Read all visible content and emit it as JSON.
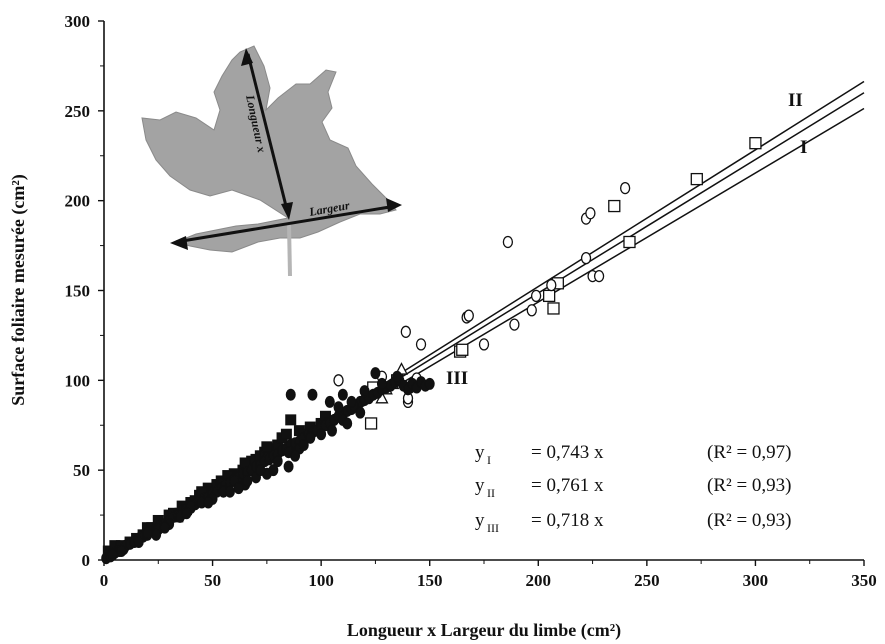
{
  "chart_data": {
    "type": "scatter",
    "xlabel": "Longueur x Largeur du limbe (cm²)",
    "ylabel": "Surface foliaire mesurée (cm²)",
    "xlim": [
      0,
      350
    ],
    "ylim": [
      0,
      300
    ],
    "x_ticks": [
      0,
      50,
      100,
      150,
      200,
      250,
      300,
      350
    ],
    "y_ticks": [
      0,
      50,
      100,
      150,
      200,
      250,
      300
    ],
    "grid": false,
    "regression_lines": [
      {
        "name": "I",
        "slope": 0.743
      },
      {
        "name": "II",
        "slope": 0.761
      },
      {
        "name": "III",
        "slope": 0.718
      }
    ],
    "equations": [
      {
        "y": "y",
        "sub": "I",
        "rhs": "= 0,743  x",
        "r2": "(R² = 0,97)"
      },
      {
        "y": "y",
        "sub": "II",
        "rhs": "= 0,761  x",
        "r2": "(R² = 0,93)"
      },
      {
        "y": "y",
        "sub": "III",
        "rhs": "= 0,718  x",
        "r2": "(R² = 0,93)"
      }
    ],
    "series": [
      {
        "marker": "open-square",
        "points": [
          [
            124,
            96
          ],
          [
            164,
            116
          ],
          [
            123,
            76
          ],
          [
            207,
            140
          ],
          [
            209,
            154
          ],
          [
            205,
            147
          ],
          [
            235,
            197
          ],
          [
            242,
            177
          ],
          [
            273,
            212
          ],
          [
            300,
            232
          ],
          [
            135,
            100
          ],
          [
            165,
            117
          ]
        ]
      },
      {
        "marker": "open-circle",
        "points": [
          [
            108,
            100
          ],
          [
            128,
            102
          ],
          [
            141,
            96
          ],
          [
            144,
            101
          ],
          [
            140,
            88
          ],
          [
            139,
            127
          ],
          [
            146,
            120
          ],
          [
            167,
            135
          ],
          [
            175,
            120
          ],
          [
            186,
            177
          ],
          [
            189,
            131
          ],
          [
            197,
            139
          ],
          [
            199,
            147
          ],
          [
            206,
            153
          ],
          [
            222,
            190
          ],
          [
            224,
            193
          ],
          [
            222,
            168
          ],
          [
            225,
            158
          ],
          [
            228,
            158
          ],
          [
            240,
            207
          ],
          [
            140,
            90
          ],
          [
            168,
            136
          ]
        ]
      },
      {
        "marker": "open-triangle",
        "points": [
          [
            130,
            95
          ],
          [
            137,
            106
          ],
          [
            133,
            98
          ],
          [
            128,
            90
          ]
        ]
      },
      {
        "marker": "filled-square",
        "points": [
          [
            2,
            5
          ],
          [
            5,
            8
          ],
          [
            8,
            8
          ],
          [
            12,
            10
          ],
          [
            15,
            12
          ],
          [
            18,
            14
          ],
          [
            20,
            18
          ],
          [
            22,
            18
          ],
          [
            25,
            22
          ],
          [
            28,
            20
          ],
          [
            30,
            25
          ],
          [
            32,
            26
          ],
          [
            34,
            24
          ],
          [
            36,
            30
          ],
          [
            38,
            28
          ],
          [
            40,
            32
          ],
          [
            42,
            33
          ],
          [
            44,
            36
          ],
          [
            46,
            34
          ],
          [
            48,
            40
          ],
          [
            50,
            38
          ],
          [
            52,
            42
          ],
          [
            54,
            44
          ],
          [
            55,
            43
          ],
          [
            58,
            46
          ],
          [
            60,
            48
          ],
          [
            62,
            47
          ],
          [
            64,
            50
          ],
          [
            66,
            52
          ],
          [
            68,
            55
          ],
          [
            70,
            56
          ],
          [
            72,
            58
          ],
          [
            74,
            60
          ],
          [
            76,
            58
          ],
          [
            78,
            62
          ],
          [
            80,
            64
          ],
          [
            82,
            68
          ],
          [
            84,
            70
          ],
          [
            86,
            78
          ],
          [
            88,
            62
          ],
          [
            90,
            72
          ],
          [
            92,
            70
          ],
          [
            95,
            74
          ],
          [
            98,
            72
          ],
          [
            100,
            76
          ],
          [
            102,
            80
          ],
          [
            104,
            76
          ],
          [
            35,
            26
          ],
          [
            45,
            38
          ],
          [
            65,
            54
          ],
          [
            75,
            63
          ],
          [
            57,
            47
          ]
        ]
      },
      {
        "marker": "filled-circle",
        "points": [
          [
            1,
            1
          ],
          [
            3,
            2
          ],
          [
            5,
            4
          ],
          [
            7,
            5
          ],
          [
            9,
            6
          ],
          [
            10,
            8
          ],
          [
            12,
            9
          ],
          [
            14,
            10
          ],
          [
            16,
            12
          ],
          [
            18,
            13
          ],
          [
            20,
            14
          ],
          [
            22,
            16
          ],
          [
            24,
            17
          ],
          [
            26,
            19
          ],
          [
            28,
            20
          ],
          [
            30,
            22
          ],
          [
            32,
            24
          ],
          [
            34,
            25
          ],
          [
            36,
            27
          ],
          [
            38,
            28
          ],
          [
            40,
            29
          ],
          [
            42,
            31
          ],
          [
            44,
            33
          ],
          [
            46,
            34
          ],
          [
            48,
            35
          ],
          [
            50,
            37
          ],
          [
            52,
            38
          ],
          [
            54,
            40
          ],
          [
            56,
            42
          ],
          [
            58,
            43
          ],
          [
            60,
            45
          ],
          [
            62,
            46
          ],
          [
            64,
            48
          ],
          [
            66,
            49
          ],
          [
            68,
            50
          ],
          [
            70,
            52
          ],
          [
            72,
            53
          ],
          [
            74,
            55
          ],
          [
            76,
            56
          ],
          [
            78,
            58
          ],
          [
            80,
            59
          ],
          [
            82,
            61
          ],
          [
            84,
            62
          ],
          [
            86,
            64
          ],
          [
            88,
            65
          ],
          [
            90,
            66
          ],
          [
            92,
            68
          ],
          [
            94,
            70
          ],
          [
            96,
            71
          ],
          [
            98,
            72
          ],
          [
            100,
            74
          ],
          [
            102,
            75
          ],
          [
            104,
            76
          ],
          [
            106,
            78
          ],
          [
            108,
            80
          ],
          [
            110,
            81
          ],
          [
            112,
            83
          ],
          [
            114,
            84
          ],
          [
            116,
            86
          ],
          [
            118,
            88
          ],
          [
            120,
            89
          ],
          [
            122,
            90
          ],
          [
            124,
            92
          ],
          [
            126,
            93
          ],
          [
            128,
            95
          ],
          [
            130,
            96
          ],
          [
            132,
            97
          ],
          [
            134,
            99
          ],
          [
            136,
            100
          ],
          [
            138,
            97
          ],
          [
            140,
            95
          ],
          [
            142,
            98
          ],
          [
            144,
            96
          ],
          [
            146,
            99
          ],
          [
            148,
            97
          ],
          [
            150,
            98
          ],
          [
            86,
            92
          ],
          [
            96,
            92
          ],
          [
            104,
            88
          ],
          [
            110,
            92
          ],
          [
            120,
            94
          ],
          [
            125,
            104
          ],
          [
            135,
            102
          ],
          [
            115,
            86
          ],
          [
            128,
            98
          ],
          [
            75,
            48
          ],
          [
            70,
            46
          ],
          [
            65,
            42
          ],
          [
            60,
            44
          ],
          [
            55,
            38
          ],
          [
            50,
            34
          ],
          [
            45,
            32
          ],
          [
            40,
            30
          ],
          [
            35,
            24
          ],
          [
            30,
            20
          ],
          [
            25,
            17
          ],
          [
            20,
            15
          ],
          [
            80,
            55
          ],
          [
            85,
            60
          ],
          [
            90,
            62
          ],
          [
            95,
            68
          ],
          [
            100,
            70
          ],
          [
            105,
            72
          ],
          [
            110,
            78
          ],
          [
            112,
            76
          ],
          [
            118,
            82
          ],
          [
            85,
            52
          ],
          [
            78,
            50
          ],
          [
            88,
            58
          ],
          [
            92,
            64
          ],
          [
            108,
            85
          ],
          [
            114,
            88
          ],
          [
            62,
            40
          ],
          [
            66,
            44
          ],
          [
            72,
            50
          ],
          [
            58,
            38
          ],
          [
            48,
            32
          ],
          [
            38,
            26
          ],
          [
            28,
            18
          ],
          [
            24,
            14
          ],
          [
            16,
            10
          ],
          [
            8,
            5
          ],
          [
            4,
            3
          ]
        ]
      }
    ]
  },
  "inset_labels": {
    "length": "Longueur x",
    "width": "Largeur"
  }
}
